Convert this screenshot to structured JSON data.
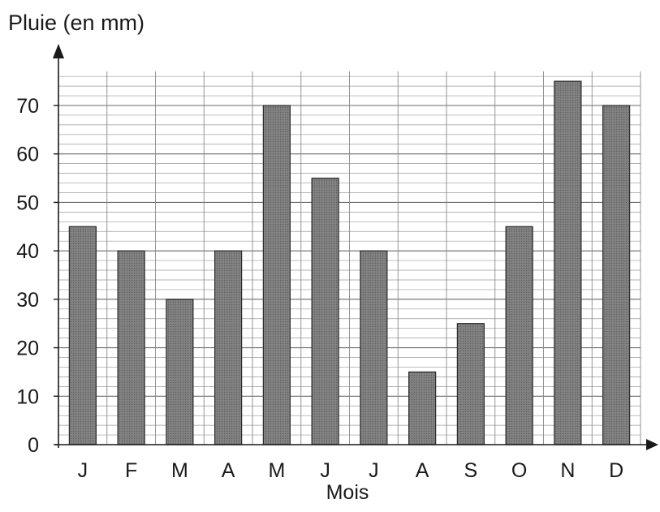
{
  "chart_data": {
    "type": "bar",
    "ylabel": "Pluie (en mm)",
    "xlabel": "Mois",
    "categories": [
      "J",
      "F",
      "M",
      "A",
      "M",
      "J",
      "J",
      "A",
      "S",
      "O",
      "N",
      "D"
    ],
    "values": [
      45,
      40,
      30,
      40,
      70,
      55,
      40,
      15,
      25,
      45,
      75,
      70
    ],
    "ylim": [
      0,
      75
    ],
    "yticks": [
      "0",
      "10",
      "20",
      "30",
      "40",
      "50",
      "60",
      "70"
    ],
    "grid": true,
    "bar_color": "#7a7a7a",
    "grid_color": "#9a9a9a",
    "axis_color": "#1a1a1a"
  }
}
